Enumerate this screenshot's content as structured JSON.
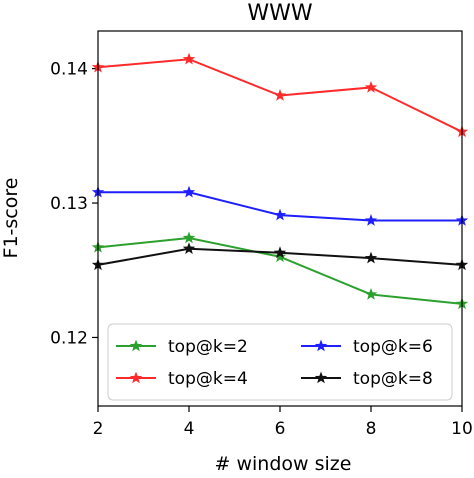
{
  "chart_data": {
    "type": "line",
    "title": "WWW",
    "xlabel": "# window size",
    "ylabel": "F1-score",
    "x": [
      2,
      4,
      6,
      8,
      10
    ],
    "x_ticks": [
      2,
      4,
      6,
      8,
      10
    ],
    "y_ticks": [
      0.12,
      0.13,
      0.14
    ],
    "y_tick_labels": [
      "0.12",
      "0.13",
      "0.14"
    ],
    "xlim": [
      2,
      10
    ],
    "ylim": [
      0.1149,
      0.1428
    ],
    "grid": false,
    "legend_position": "lower-center",
    "marker": "star",
    "series": [
      {
        "name": "top@k=2",
        "color": "#2ca02c",
        "values": [
          0.1267,
          0.1274,
          0.126,
          0.1232,
          0.1225
        ]
      },
      {
        "name": "top@k=4",
        "color": "#ff2a2a",
        "values": [
          0.1401,
          0.1407,
          0.138,
          0.1386,
          0.1353
        ]
      },
      {
        "name": "top@k=6",
        "color": "#1f1fff",
        "values": [
          0.1308,
          0.1308,
          0.1291,
          0.1287,
          0.1287
        ]
      },
      {
        "name": "top@k=8",
        "color": "#111111",
        "values": [
          0.1254,
          0.1266,
          0.1263,
          0.1259,
          0.1254
        ]
      }
    ]
  }
}
